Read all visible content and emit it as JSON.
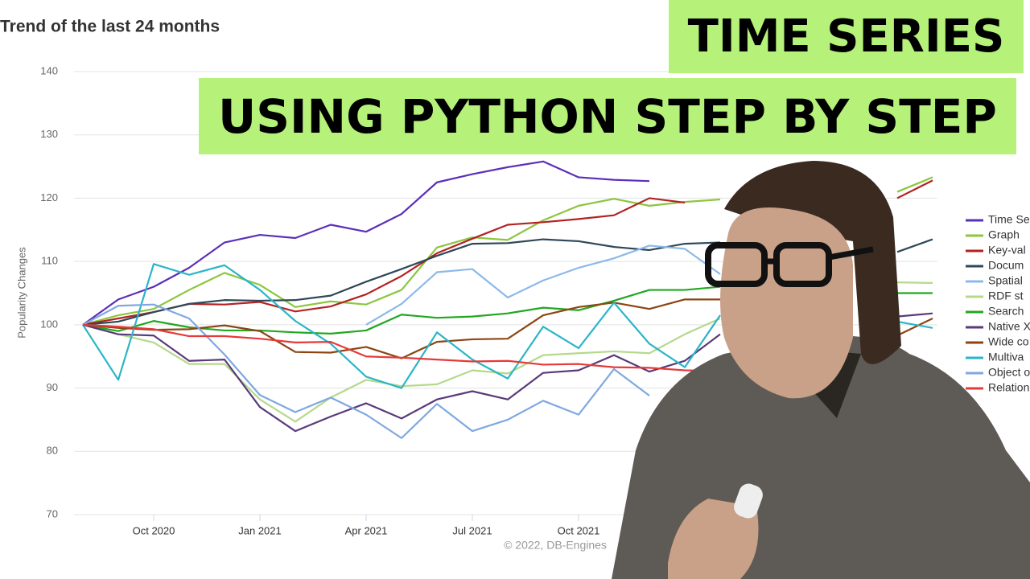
{
  "chart_data": {
    "type": "line",
    "title": "Trend of the last 24 months",
    "y_label": "Popularity Changes",
    "credit": "© 2022, DB-Engines",
    "categories": [
      null,
      null,
      "Oct 2020",
      null,
      null,
      "Jan 2021",
      null,
      null,
      "Apr 2021",
      null,
      null,
      "Jul 2021",
      null,
      null,
      "Oct 2021",
      null,
      null,
      null,
      null,
      null,
      null,
      null,
      null,
      null,
      null
    ],
    "ylim": [
      70,
      140
    ],
    "yticks": [
      70,
      80,
      90,
      100,
      110,
      120,
      130,
      140
    ],
    "grid": true,
    "series": [
      {
        "name": "Time Se",
        "color": "#5b2fb8",
        "values": [
          100,
          104,
          106,
          109,
          113,
          114.2,
          113.7,
          115.8,
          114.7,
          117.5,
          122.5,
          123.8,
          124.9,
          125.8,
          123.3,
          122.9,
          122.7,
          null,
          null,
          null,
          null,
          null,
          null,
          null,
          null
        ]
      },
      {
        "name": "Graph",
        "color": "#8cc63f",
        "values": [
          100,
          101.5,
          102.5,
          105.5,
          108.2,
          106.3,
          102.8,
          103.7,
          103.2,
          105.5,
          112.2,
          113.8,
          113.4,
          116.5,
          118.8,
          119.9,
          118.8,
          119.4,
          119.8,
          null,
          null,
          null,
          null,
          121,
          123.3
        ]
      },
      {
        "name": "Key-val",
        "color": "#b22222",
        "values": [
          100,
          101,
          102,
          103.3,
          103.2,
          103.6,
          102.1,
          102.9,
          104.8,
          107.7,
          111.3,
          113.6,
          115.8,
          116.2,
          116.7,
          117.3,
          120,
          119.3,
          null,
          null,
          null,
          null,
          null,
          120,
          122.8
        ]
      },
      {
        "name": "Docum",
        "color": "#2f4858",
        "values": [
          100,
          100.5,
          102,
          103.3,
          103.9,
          103.8,
          103.9,
          104.6,
          106.8,
          108.8,
          110.9,
          112.8,
          112.9,
          113.5,
          113.2,
          112.3,
          111.8,
          112.8,
          113,
          null,
          null,
          null,
          null,
          111.5,
          113.5
        ]
      },
      {
        "name": "Spatial",
        "color": "#8db9e8",
        "values": [
          null,
          null,
          null,
          null,
          null,
          null,
          null,
          null,
          100,
          103.3,
          108.3,
          108.8,
          104.3,
          107,
          109,
          110.5,
          112.5,
          112,
          108,
          null,
          null,
          null,
          null,
          null,
          113
        ]
      },
      {
        "name": "RDF st",
        "color": "#b5d98a",
        "values": [
          100,
          98.5,
          97.2,
          93.8,
          93.8,
          88.2,
          84.7,
          88.5,
          91.3,
          90.3,
          90.6,
          92.8,
          92.3,
          95.2,
          95.5,
          95.8,
          95.5,
          98.5,
          101,
          null,
          null,
          null,
          null,
          106.7,
          106.6
        ]
      },
      {
        "name": "Search",
        "color": "#22a722",
        "values": [
          100,
          99,
          100.6,
          99.6,
          99.1,
          99.1,
          98.8,
          98.6,
          99.1,
          101.6,
          101.1,
          101.3,
          101.8,
          102.7,
          102.3,
          103.8,
          105.5,
          105.5,
          106,
          null,
          null,
          null,
          null,
          105,
          105
        ]
      },
      {
        "name": "Native X",
        "color": "#5a3a7a",
        "values": [
          100,
          98.5,
          98.3,
          94.3,
          94.5,
          87,
          83.2,
          85.5,
          87.6,
          85.2,
          88.2,
          89.5,
          88.2,
          92.4,
          92.8,
          95.2,
          92.6,
          94.3,
          98.5,
          null,
          null,
          null,
          null,
          101.3,
          101.8
        ]
      },
      {
        "name": "Wide co",
        "color": "#8b4513",
        "values": [
          100,
          99.5,
          99.2,
          99.3,
          99.9,
          99,
          95.7,
          95.6,
          96.5,
          94.7,
          97.3,
          97.7,
          97.8,
          101.5,
          102.8,
          103.5,
          102.5,
          104,
          104,
          null,
          null,
          null,
          null,
          98.3,
          101
        ]
      },
      {
        "name": "Multiva",
        "color": "#2bb5c8",
        "values": [
          100,
          91.3,
          109.6,
          107.9,
          109.4,
          105.5,
          100.6,
          97,
          91.8,
          90,
          98.8,
          94.5,
          91.5,
          99.7,
          96.3,
          103.5,
          97,
          93.3,
          101.5,
          null,
          null,
          null,
          null,
          100.5,
          99.5
        ]
      },
      {
        "name": "Object o",
        "color": "#7fa8e0",
        "values": [
          100,
          103,
          103.2,
          101,
          95.3,
          88.9,
          86.2,
          88.5,
          85.8,
          82.1,
          87.5,
          83.2,
          85,
          88,
          85.8,
          93,
          88.8,
          null,
          null,
          null,
          null,
          null,
          null,
          null,
          94
        ]
      },
      {
        "name": "Relation",
        "color": "#e53a3a",
        "values": [
          100,
          99.7,
          99.3,
          98.2,
          98.2,
          97.8,
          97.2,
          97.3,
          95,
          94.8,
          94.5,
          94.2,
          94.3,
          93.7,
          93.8,
          93.3,
          93.2,
          92.8,
          92.7,
          null,
          null,
          null,
          null,
          null,
          null
        ]
      }
    ]
  },
  "overlay": {
    "line1": "TIME SERIES",
    "line2": "USING PYTHON STEP BY STEP"
  }
}
